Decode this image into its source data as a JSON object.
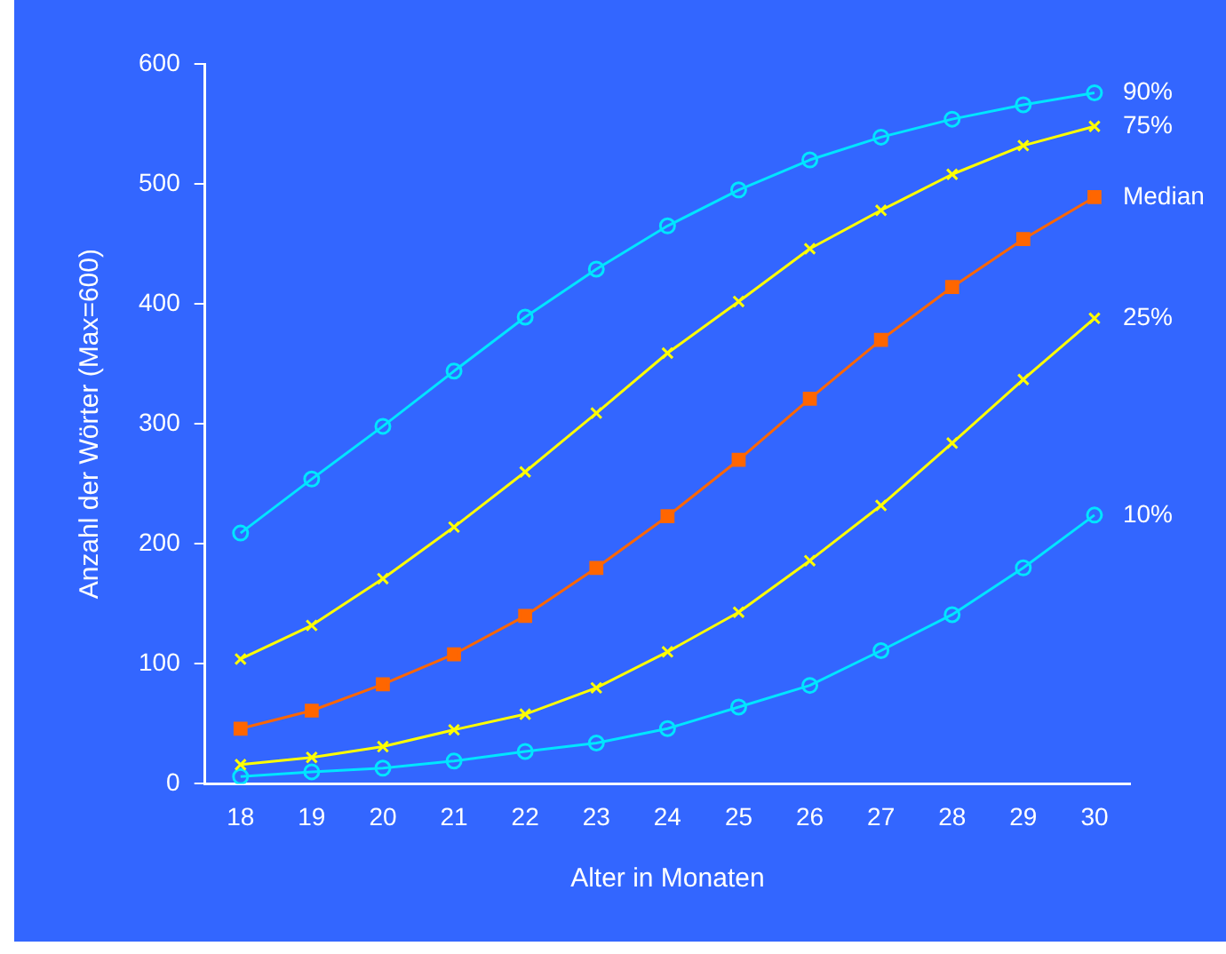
{
  "chart_data": {
    "type": "line",
    "xlabel": "Alter in Monaten",
    "ylabel": "Anzahl der Wörter (Max=600)",
    "categories": [
      "18",
      "19",
      "20",
      "21",
      "22",
      "23",
      "24",
      "25",
      "26",
      "27",
      "28",
      "29",
      "30"
    ],
    "ylim": [
      0,
      600
    ],
    "yticks": [
      0,
      100,
      200,
      300,
      400,
      500,
      600
    ],
    "grid": false,
    "legend": false,
    "line_style": "solid",
    "series": [
      {
        "name": "90%",
        "color": "#00e5ff",
        "marker": "circle",
        "values": [
          209,
          254,
          298,
          344,
          389,
          429,
          465,
          495,
          520,
          539,
          554,
          566,
          576
        ]
      },
      {
        "name": "75%",
        "color": "#ffff00",
        "marker": "cross",
        "values": [
          104,
          132,
          171,
          214,
          260,
          309,
          359,
          402,
          446,
          478,
          508,
          532,
          548
        ]
      },
      {
        "name": "Median",
        "color": "#ff6600",
        "marker": "square",
        "values": [
          46,
          61,
          83,
          108,
          140,
          180,
          223,
          270,
          321,
          370,
          414,
          454,
          489
        ]
      },
      {
        "name": "25%",
        "color": "#ffff00",
        "marker": "cross",
        "values": [
          16,
          22,
          31,
          45,
          58,
          80,
          110,
          143,
          186,
          232,
          284,
          337,
          388
        ]
      },
      {
        "name": "10%",
        "color": "#00e5ff",
        "marker": "circle",
        "values": [
          6,
          10,
          13,
          19,
          27,
          34,
          46,
          64,
          82,
          111,
          141,
          180,
          224
        ]
      }
    ]
  }
}
